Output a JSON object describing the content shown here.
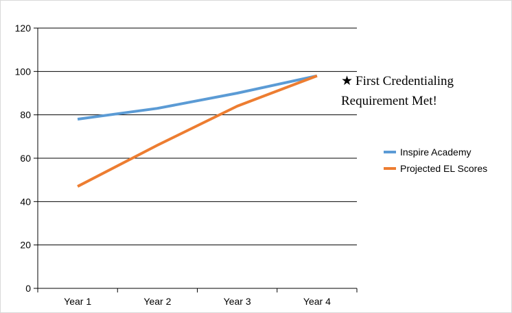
{
  "chart_data": {
    "type": "line",
    "title": "",
    "xlabel": "",
    "ylabel": "",
    "categories": [
      "Year 1",
      "Year 2",
      "Year 3",
      "Year 4"
    ],
    "ylim": [
      0,
      120
    ],
    "yticks": [
      0,
      20,
      40,
      60,
      80,
      100,
      120
    ],
    "grid": true,
    "legend_position": "right",
    "series": [
      {
        "name": "Inspire Academy",
        "color": "#5b9bd5",
        "values": [
          78,
          83,
          90,
          98
        ]
      },
      {
        "name": "Projected EL Scores",
        "color": "#ed7d31",
        "values": [
          47,
          66,
          84,
          98
        ]
      }
    ],
    "annotation": {
      "icon": "star-icon",
      "glyph": "★",
      "line1": "First Credentialing",
      "line2": "Requirement Met!"
    }
  }
}
